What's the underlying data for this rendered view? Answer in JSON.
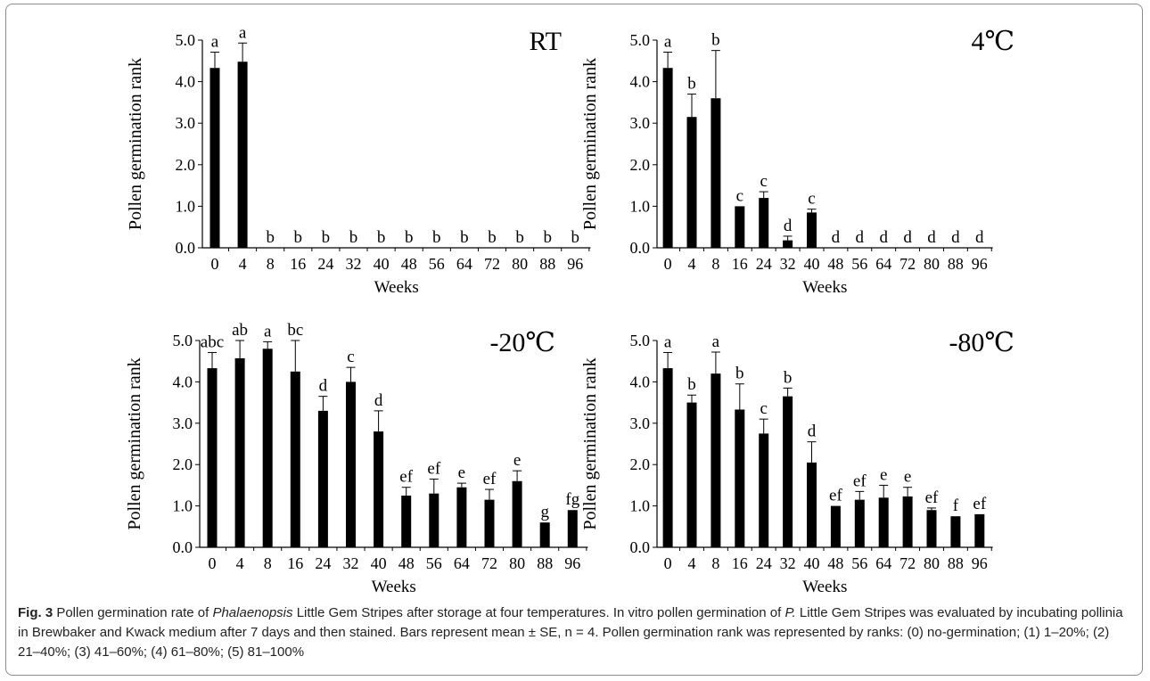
{
  "chart_data": [
    {
      "type": "bar",
      "title": "RT",
      "xlabel": "Weeks",
      "ylabel": "Pollen germination rank",
      "ylim": [
        0,
        5
      ],
      "yticks": [
        "0.0",
        "1.0",
        "2.0",
        "3.0",
        "4.0",
        "5.0"
      ],
      "categories": [
        "0",
        "4",
        "8",
        "16",
        "24",
        "32",
        "40",
        "48",
        "56",
        "64",
        "72",
        "80",
        "88",
        "96"
      ],
      "values": [
        4.33,
        4.48,
        0,
        0,
        0,
        0,
        0,
        0,
        0,
        0,
        0,
        0,
        0,
        0
      ],
      "errors": [
        0.38,
        0.45,
        0,
        0,
        0,
        0,
        0,
        0,
        0,
        0,
        0,
        0,
        0,
        0
      ],
      "letters": [
        "a",
        "a",
        "b",
        "b",
        "b",
        "b",
        "b",
        "b",
        "b",
        "b",
        "b",
        "b",
        "b",
        "b"
      ],
      "color": "#000000"
    },
    {
      "type": "bar",
      "title": "4℃",
      "xlabel": "Weeks",
      "ylabel": "Pollen germination rank",
      "ylim": [
        0,
        5
      ],
      "yticks": [
        "0.0",
        "1.0",
        "2.0",
        "3.0",
        "4.0",
        "5.0"
      ],
      "categories": [
        "0",
        "4",
        "8",
        "16",
        "24",
        "32",
        "40",
        "48",
        "56",
        "64",
        "72",
        "80",
        "88",
        "96"
      ],
      "values": [
        4.33,
        3.15,
        3.6,
        1.0,
        1.2,
        0.18,
        0.85,
        0,
        0,
        0,
        0,
        0,
        0,
        0
      ],
      "errors": [
        0.38,
        0.55,
        1.15,
        0,
        0.15,
        0.1,
        0.08,
        0,
        0,
        0,
        0,
        0,
        0,
        0
      ],
      "letters": [
        "a",
        "b",
        "b",
        "c",
        "c",
        "d",
        "c",
        "d",
        "d",
        "d",
        "d",
        "d",
        "d",
        "d"
      ],
      "color": "#000000"
    },
    {
      "type": "bar",
      "title": "-20℃",
      "xlabel": "Weeks",
      "ylabel": "Pollen germination rank",
      "ylim": [
        0,
        5
      ],
      "yticks": [
        "0.0",
        "1.0",
        "2.0",
        "3.0",
        "4.0",
        "5.0"
      ],
      "categories": [
        "0",
        "4",
        "8",
        "16",
        "24",
        "32",
        "40",
        "48",
        "56",
        "64",
        "72",
        "80",
        "88",
        "96"
      ],
      "values": [
        4.33,
        4.57,
        4.8,
        4.25,
        3.3,
        4.0,
        2.8,
        1.25,
        1.3,
        1.45,
        1.15,
        1.6,
        0.6,
        0.9
      ],
      "errors": [
        0.38,
        0.43,
        0.17,
        0.75,
        0.35,
        0.35,
        0.5,
        0.2,
        0.35,
        0.1,
        0.25,
        0.25,
        0,
        0
      ],
      "letters": [
        "abc",
        "ab",
        "a",
        "bc",
        "d",
        "c",
        "d",
        "ef",
        "ef",
        "e",
        "ef",
        "e",
        "g",
        "fg"
      ],
      "color": "#000000"
    },
    {
      "type": "bar",
      "title": "-80℃",
      "xlabel": "Weeks",
      "ylabel": "Pollen germination rank",
      "ylim": [
        0,
        5
      ],
      "yticks": [
        "0.0",
        "1.0",
        "2.0",
        "3.0",
        "4.0",
        "5.0"
      ],
      "categories": [
        "0",
        "4",
        "8",
        "16",
        "24",
        "32",
        "40",
        "48",
        "56",
        "64",
        "72",
        "80",
        "88",
        "96"
      ],
      "values": [
        4.33,
        3.5,
        4.2,
        3.33,
        2.75,
        3.65,
        2.05,
        1.0,
        1.15,
        1.2,
        1.23,
        0.9,
        0.75,
        0.8
      ],
      "errors": [
        0.38,
        0.18,
        0.52,
        0.62,
        0.35,
        0.2,
        0.5,
        0,
        0.2,
        0.3,
        0.22,
        0.05,
        0,
        0
      ],
      "letters": [
        "a",
        "b",
        "a",
        "b",
        "c",
        "b",
        "d",
        "ef",
        "ef",
        "e",
        "e",
        "ef",
        "f",
        "ef"
      ],
      "color": "#000000"
    }
  ],
  "caption": {
    "label": "Fig. 3",
    "text_1": "  Pollen germination rate of ",
    "italic_1": "Phalaenopsis",
    "text_2": " Little Gem Stripes after storage at four temperatures. In vitro pollen germination of ",
    "italic_2": "P.",
    "text_3": " Little Gem Stripes was evaluated by incubating pollinia in Brewbaker and Kwack medium after 7 days and then stained. Bars represent mean ± SE, n = 4. Pollen germination rank was represented by ranks: (0) no-germination; (1) 1–20%; (2) 21–40%; (3) 41–60%; (4) 61–80%; (5) 81–100%"
  }
}
